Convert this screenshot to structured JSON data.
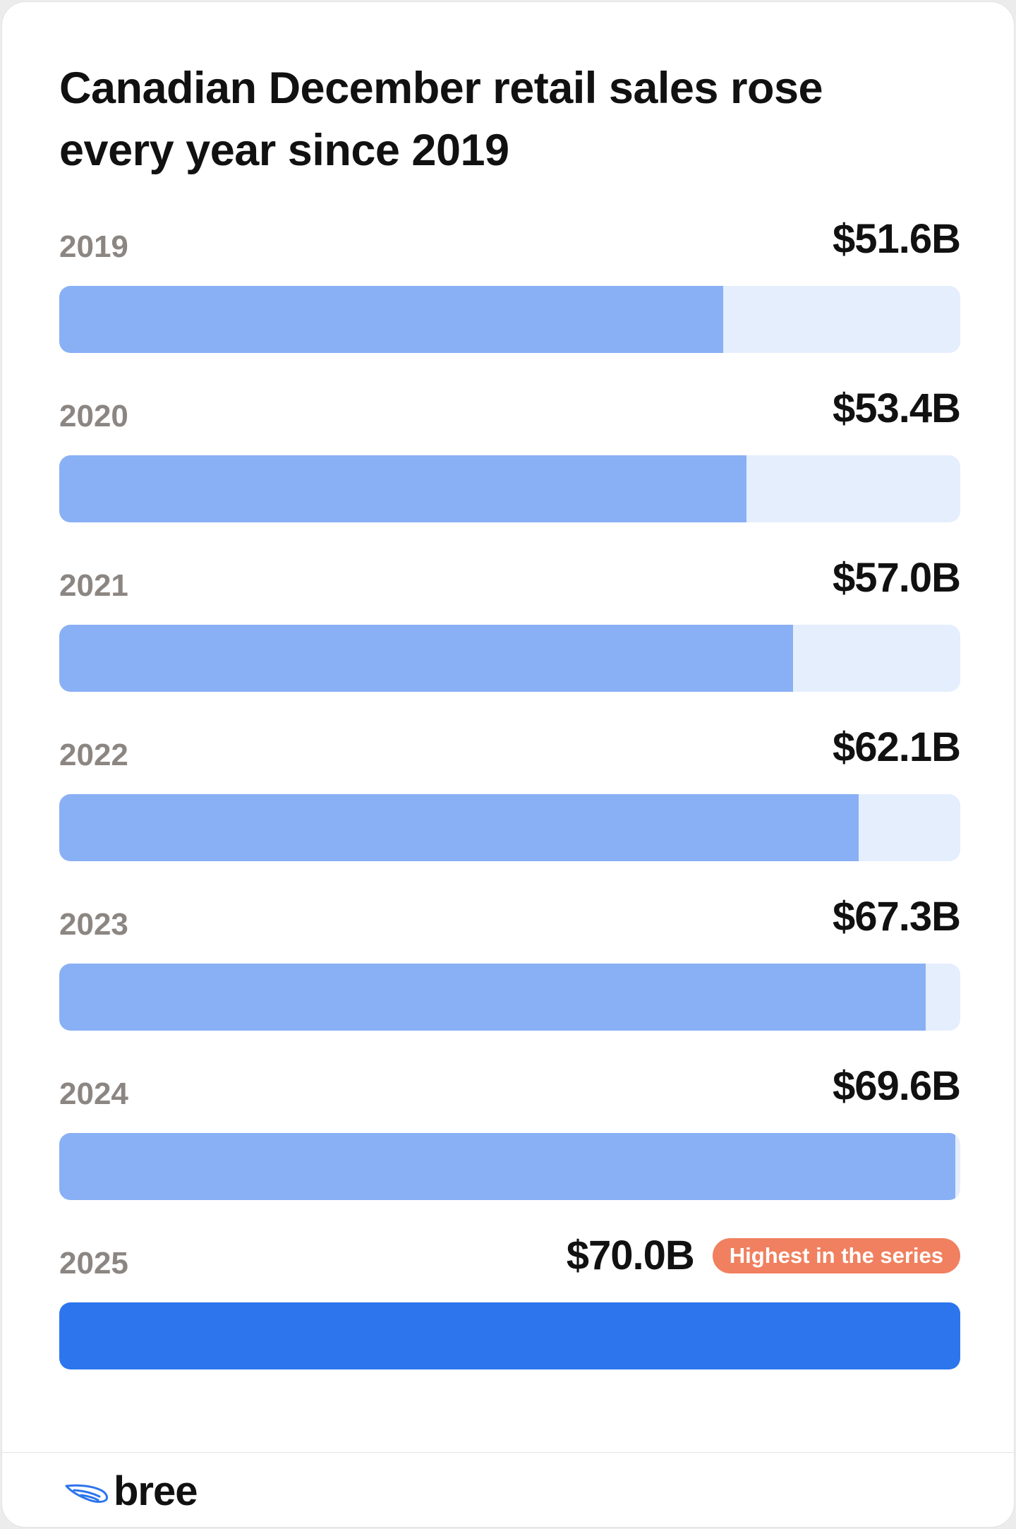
{
  "title": "Canadian December retail sales rose every year since 2019",
  "brand": {
    "name": "bree",
    "icon": "wing-logo-icon",
    "accent": "#2c75ed"
  },
  "colors": {
    "bar": "#89b0f5",
    "bar_highlight": "#2c75ed",
    "track": "#e5eefd",
    "badge": "#f0805f"
  },
  "chart_data": {
    "type": "bar",
    "orientation": "horizontal",
    "categories": [
      "2019",
      "2020",
      "2021",
      "2022",
      "2023",
      "2024",
      "2025"
    ],
    "values": [
      51.6,
      53.4,
      57.0,
      62.1,
      67.3,
      69.6,
      70.0
    ],
    "value_labels": [
      "$51.6B",
      "$53.4B",
      "$57.0B",
      "$62.1B",
      "$67.3B",
      "$69.6B",
      "$70.0B"
    ],
    "unit": "$B",
    "xlim": [
      0,
      70.0
    ],
    "highlight_index": 6,
    "annotations": [
      {
        "category": "2025",
        "text": "Highest in the series"
      }
    ],
    "grid": false,
    "legend": "none"
  }
}
